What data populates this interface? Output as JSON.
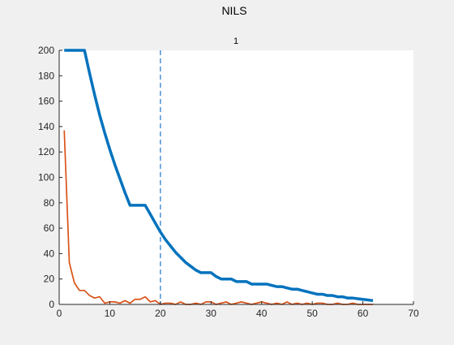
{
  "figure": {
    "title": "NILS"
  },
  "chart_data": {
    "type": "line",
    "title": "1",
    "xlabel": "",
    "ylabel": "",
    "xlim": [
      0,
      70
    ],
    "ylim": [
      0,
      200
    ],
    "xticks": [
      0,
      10,
      20,
      30,
      40,
      50,
      60,
      70
    ],
    "yticks": [
      0,
      20,
      40,
      60,
      80,
      100,
      120,
      140,
      160,
      180,
      200
    ],
    "grid": false,
    "legend": "none",
    "vline": {
      "x": 20,
      "color": "#4a90d9",
      "style": "dashed"
    },
    "series": [
      {
        "color": "#0072BD",
        "width": "thick",
        "x": [
          1,
          2,
          3,
          4,
          5,
          6,
          7,
          8,
          9,
          10,
          11,
          12,
          13,
          14,
          15,
          16,
          17,
          18,
          19,
          20,
          21,
          22,
          23,
          24,
          25,
          26,
          27,
          28,
          29,
          30,
          31,
          32,
          33,
          34,
          35,
          36,
          37,
          38,
          39,
          40,
          41,
          42,
          43,
          44,
          45,
          46,
          47,
          48,
          49,
          50,
          51,
          52,
          53,
          54,
          55,
          56,
          57,
          58,
          59,
          60,
          61,
          62
        ],
        "values": [
          200,
          200,
          200,
          200,
          200,
          182,
          165,
          149,
          135,
          122,
          110,
          99,
          88,
          78,
          78,
          78,
          78,
          71,
          64,
          57,
          51,
          46,
          41,
          37,
          33,
          30,
          27,
          25,
          25,
          25,
          22,
          20,
          20,
          20,
          18,
          18,
          18,
          16,
          16,
          16,
          16,
          15,
          14,
          14,
          13,
          12,
          12,
          11,
          10,
          9,
          8,
          8,
          7,
          7,
          6,
          6,
          5,
          5,
          4.5,
          4,
          3.5,
          3
        ]
      },
      {
        "color": "#D95319",
        "width": "thin",
        "x": [
          1,
          2,
          3,
          4,
          5,
          6,
          7,
          8,
          9,
          10,
          11,
          12,
          13,
          14,
          15,
          16,
          17,
          18,
          19,
          20,
          21,
          22,
          23,
          24,
          25,
          26,
          27,
          28,
          29,
          30,
          31,
          32,
          33,
          34,
          35,
          36,
          37,
          38,
          39,
          40,
          41,
          42,
          43,
          44,
          45,
          46,
          47,
          48,
          49,
          50,
          51,
          52,
          53,
          54,
          55,
          56,
          57,
          58,
          59,
          60,
          61,
          62
        ],
        "values": [
          137,
          33,
          17,
          11,
          11,
          7,
          5,
          6,
          1,
          2,
          2,
          1,
          3,
          1,
          4,
          4,
          6,
          2,
          3,
          0,
          1,
          1,
          0,
          2,
          0,
          0,
          1,
          0,
          2,
          2,
          0,
          1,
          2,
          0,
          1,
          2,
          1,
          0,
          1,
          2,
          1,
          0,
          1,
          0,
          2,
          0,
          1,
          0,
          1,
          0,
          1,
          1,
          0,
          0,
          1,
          0,
          0,
          1,
          0,
          0,
          0,
          0
        ]
      }
    ]
  }
}
